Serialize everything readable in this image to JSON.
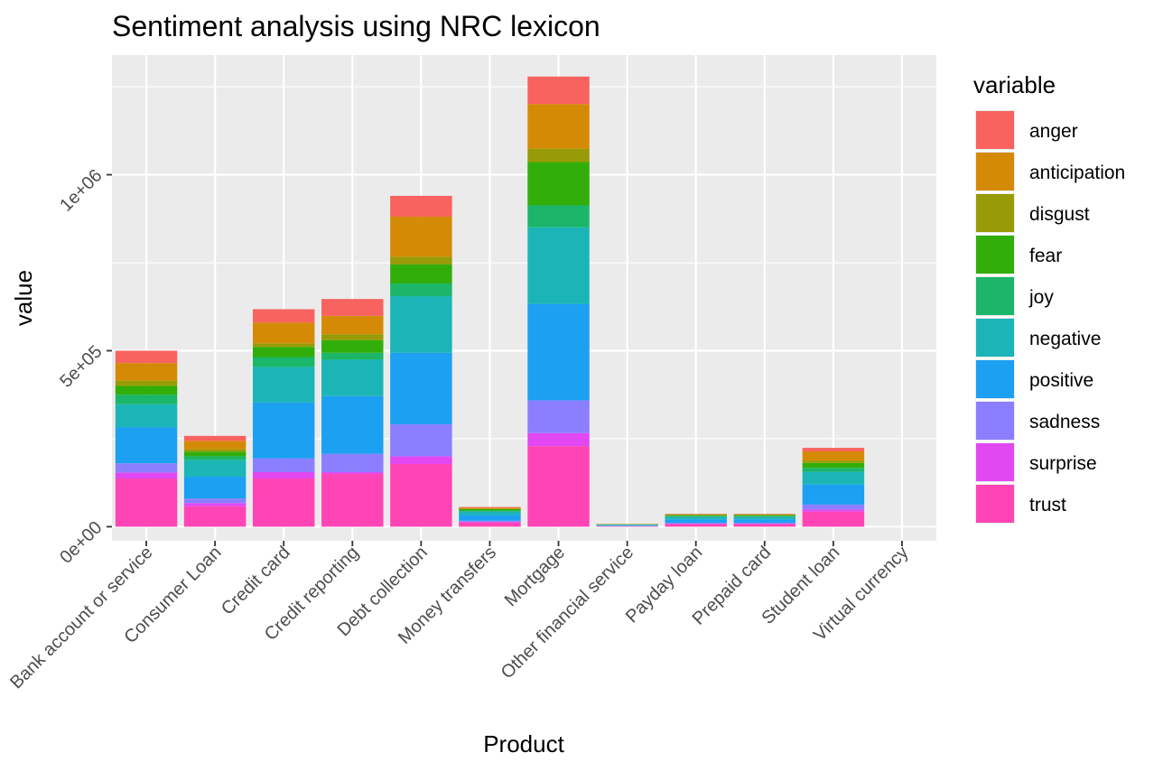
{
  "chart_data": {
    "type": "bar",
    "stacked": true,
    "title": "Sentiment analysis using NRC lexicon",
    "xlabel": "Product",
    "ylabel": "value",
    "categories": [
      "Bank account or service",
      "Consumer Loan",
      "Credit card",
      "Credit reporting",
      "Debt collection",
      "Money transfers",
      "Mortgage",
      "Other financial service",
      "Payday loan",
      "Prepaid card",
      "Student loan",
      "Virtual currency"
    ],
    "yticks": [
      0,
      500000,
      1000000
    ],
    "ytick_labels": [
      "0e+00",
      "5e+05",
      "1e+06"
    ],
    "ylim": [
      -40000,
      1340000
    ],
    "grid": true,
    "legend": {
      "title": "variable",
      "position": "right"
    },
    "series": [
      {
        "name": "trust",
        "color": "#FF45B5",
        "values": [
          137000,
          58000,
          137000,
          150000,
          178000,
          12000,
          229000,
          1500,
          7500,
          7500,
          43000,
          40
        ]
      },
      {
        "name": "surprise",
        "color": "#E148F1",
        "values": [
          17000,
          9000,
          18000,
          5000,
          22000,
          2000,
          37000,
          200,
          1000,
          1000,
          6000,
          5
        ]
      },
      {
        "name": "sadness",
        "color": "#8B7FFF",
        "values": [
          26000,
          13000,
          39000,
          52000,
          91000,
          3000,
          93000,
          500,
          2500,
          2500,
          14000,
          10
        ]
      },
      {
        "name": "positive",
        "color": "#1CA0F2",
        "values": [
          103000,
          62000,
          159000,
          164000,
          203000,
          16000,
          274000,
          2000,
          10000,
          10000,
          57000,
          60
        ]
      },
      {
        "name": "negative",
        "color": "#1BB5B8",
        "values": [
          65000,
          47000,
          101000,
          103000,
          161000,
          10000,
          218000,
          1500,
          7500,
          7500,
          36000,
          30
        ]
      },
      {
        "name": "joy",
        "color": "#1BB66A",
        "values": [
          27000,
          11000,
          28000,
          20000,
          36000,
          3000,
          62000,
          500,
          1500,
          1500,
          11000,
          10
        ]
      },
      {
        "name": "fear",
        "color": "#32AE0A",
        "values": [
          25000,
          13000,
          29000,
          36000,
          54000,
          4000,
          123000,
          700,
          3000,
          3000,
          14000,
          10
        ]
      },
      {
        "name": "disgust",
        "color": "#979C06",
        "values": [
          15000,
          7000,
          10000,
          17000,
          22000,
          1000,
          38000,
          200,
          1000,
          1000,
          7000,
          5
        ]
      },
      {
        "name": "anticipation",
        "color": "#D58A06",
        "values": [
          50000,
          24000,
          59000,
          52000,
          114000,
          3000,
          127000,
          700,
          1500,
          1500,
          26000,
          20
        ]
      },
      {
        "name": "anger",
        "color": "#F8635F",
        "values": [
          35000,
          14000,
          38000,
          48000,
          59000,
          2000,
          78000,
          300,
          1000,
          1000,
          10000,
          5
        ]
      }
    ]
  }
}
